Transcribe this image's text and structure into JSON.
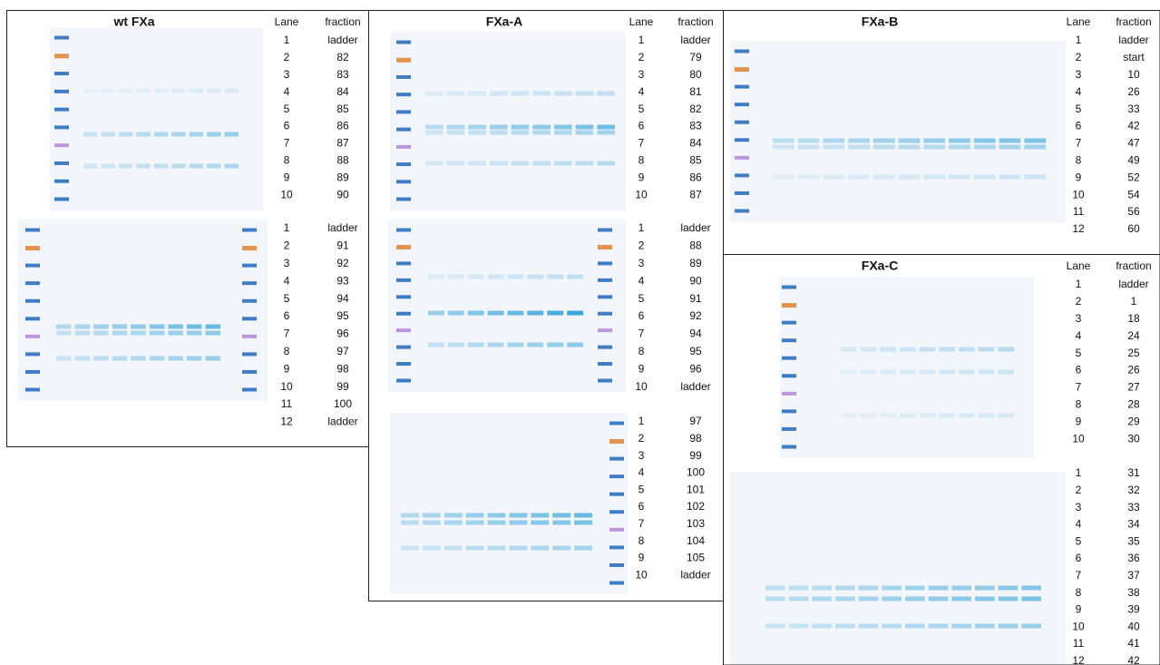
{
  "panels": [
    {
      "title": "wt FXa",
      "headers": [
        "Lane",
        "fraction"
      ],
      "tables": [
        {
          "rows": [
            [
              "1",
              "ladder"
            ],
            [
              "2",
              "82"
            ],
            [
              "3",
              "83"
            ],
            [
              "4",
              "84"
            ],
            [
              "5",
              "85"
            ],
            [
              "6",
              "86"
            ],
            [
              "7",
              "87"
            ],
            [
              "8",
              "88"
            ],
            [
              "9",
              "89"
            ],
            [
              "10",
              "90"
            ]
          ]
        },
        {
          "rows": [
            [
              "1",
              "ladder"
            ],
            [
              "2",
              "91"
            ],
            [
              "3",
              "92"
            ],
            [
              "4",
              "93"
            ],
            [
              "5",
              "94"
            ],
            [
              "6",
              "95"
            ],
            [
              "7",
              "96"
            ],
            [
              "8",
              "97"
            ],
            [
              "9",
              "98"
            ],
            [
              "10",
              "99"
            ],
            [
              "11",
              "100"
            ],
            [
              "12",
              "ladder"
            ]
          ]
        }
      ]
    },
    {
      "title": "FXa-A",
      "headers": [
        "Lane",
        "fraction"
      ],
      "tables": [
        {
          "rows": [
            [
              "1",
              "ladder"
            ],
            [
              "2",
              "79"
            ],
            [
              "3",
              "80"
            ],
            [
              "4",
              "81"
            ],
            [
              "5",
              "82"
            ],
            [
              "6",
              "83"
            ],
            [
              "7",
              "84"
            ],
            [
              "8",
              "85"
            ],
            [
              "9",
              "86"
            ],
            [
              "10",
              "87"
            ]
          ]
        },
        {
          "rows": [
            [
              "1",
              "ladder"
            ],
            [
              "2",
              "88"
            ],
            [
              "3",
              "89"
            ],
            [
              "4",
              "90"
            ],
            [
              "5",
              "91"
            ],
            [
              "6",
              "92"
            ],
            [
              "7",
              "94"
            ],
            [
              "8",
              "95"
            ],
            [
              "9",
              "96"
            ],
            [
              "10",
              "ladder"
            ]
          ]
        },
        {
          "rows": [
            [
              "1",
              "97"
            ],
            [
              "2",
              "98"
            ],
            [
              "3",
              "99"
            ],
            [
              "4",
              "100"
            ],
            [
              "5",
              "101"
            ],
            [
              "6",
              "102"
            ],
            [
              "7",
              "103"
            ],
            [
              "8",
              "104"
            ],
            [
              "9",
              "105"
            ],
            [
              "10",
              "ladder"
            ]
          ]
        }
      ]
    },
    {
      "title": "FXa-B",
      "headers": [
        "Lane",
        "fraction"
      ],
      "tables": [
        {
          "rows": [
            [
              "1",
              "ladder"
            ],
            [
              "2",
              "start"
            ],
            [
              "3",
              "10"
            ],
            [
              "4",
              "26"
            ],
            [
              "5",
              "33"
            ],
            [
              "6",
              "42"
            ],
            [
              "7",
              "47"
            ],
            [
              "8",
              "49"
            ],
            [
              "9",
              "52"
            ],
            [
              "10",
              "54"
            ],
            [
              "11",
              "56"
            ],
            [
              "12",
              "60"
            ]
          ]
        }
      ]
    },
    {
      "title": "FXa-C",
      "headers": [
        "Lane",
        "fraction"
      ],
      "tables": [
        {
          "rows": [
            [
              "1",
              "ladder"
            ],
            [
              "2",
              "1"
            ],
            [
              "3",
              "18"
            ],
            [
              "4",
              "24"
            ],
            [
              "5",
              "25"
            ],
            [
              "6",
              "26"
            ],
            [
              "7",
              "27"
            ],
            [
              "8",
              "28"
            ],
            [
              "9",
              "29"
            ],
            [
              "10",
              "30"
            ]
          ]
        },
        {
          "rows": [
            [
              "1",
              "31"
            ],
            [
              "2",
              "32"
            ],
            [
              "3",
              "33"
            ],
            [
              "4",
              "34"
            ],
            [
              "5",
              "35"
            ],
            [
              "6",
              "36"
            ],
            [
              "7",
              "37"
            ],
            [
              "8",
              "38"
            ],
            [
              "9",
              "39"
            ],
            [
              "10",
              "40"
            ],
            [
              "11",
              "41"
            ],
            [
              "12",
              "42"
            ]
          ]
        }
      ]
    }
  ]
}
